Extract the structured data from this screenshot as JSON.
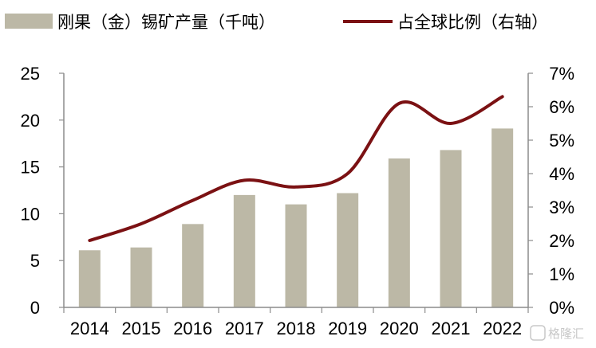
{
  "chart_data": {
    "type": "bar+line",
    "categories": [
      "2014",
      "2015",
      "2016",
      "2017",
      "2018",
      "2019",
      "2020",
      "2021",
      "2022"
    ],
    "series": [
      {
        "name": "刚果（金）锡矿产量（千吨）",
        "type": "bar",
        "axis": "left",
        "color": "#bcb8a6",
        "values": [
          6.1,
          6.4,
          8.9,
          12.0,
          11.0,
          12.2,
          15.9,
          16.8,
          19.1
        ]
      },
      {
        "name": "占全球比例（右轴）",
        "type": "line",
        "axis": "right",
        "color": "#7b1113",
        "values": [
          0.02,
          0.025,
          0.032,
          0.038,
          0.036,
          0.04,
          0.061,
          0.055,
          0.063
        ]
      }
    ],
    "y_left": {
      "min": 0,
      "max": 25,
      "ticks": [
        0,
        5,
        10,
        15,
        20,
        25
      ],
      "tick_labels": [
        "0",
        "5",
        "10",
        "15",
        "20",
        "25"
      ]
    },
    "y_right": {
      "min": 0,
      "max": 0.07,
      "ticks": [
        0,
        0.01,
        0.02,
        0.03,
        0.04,
        0.05,
        0.06,
        0.07
      ],
      "tick_labels": [
        "0%",
        "1%",
        "2%",
        "3%",
        "4%",
        "5%",
        "6%",
        "7%"
      ]
    },
    "legend_position": "top",
    "grid": false
  },
  "watermark": {
    "text": "格隆汇"
  }
}
